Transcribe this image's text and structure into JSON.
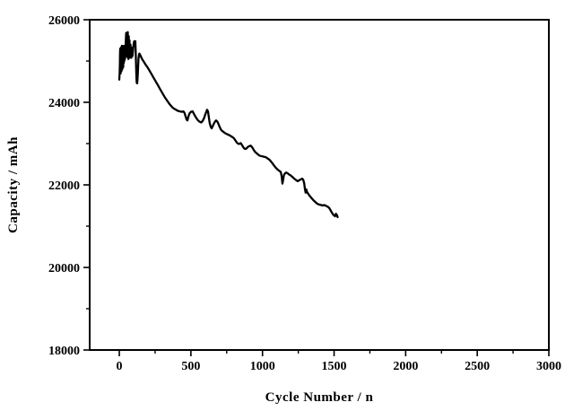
{
  "figure": {
    "background": "#ffffff",
    "frame_color": "#000000",
    "line_color": "#000000"
  },
  "chart_data": {
    "type": "line",
    "title": "",
    "xlabel": "Cycle Number / n",
    "ylabel": "Capacity / mAh",
    "xlim": [
      -207,
      3000
    ],
    "ylim": [
      18000,
      26000
    ],
    "x_ticks": [
      0,
      500,
      1000,
      1500,
      2000,
      2500,
      3000
    ],
    "x_minor_ticks": [
      250,
      750,
      1250,
      1750,
      2250,
      2750
    ],
    "y_ticks": [
      18000,
      20000,
      22000,
      24000,
      26000
    ],
    "y_minor_ticks": [
      19000,
      21000,
      23000,
      25000
    ],
    "grid": false,
    "legend": "none",
    "series": [
      {
        "name": "capacity",
        "color": "#000000",
        "points": [
          [
            0,
            24550
          ],
          [
            2,
            24700
          ],
          [
            4,
            24950
          ],
          [
            5,
            25150
          ],
          [
            6,
            25300
          ],
          [
            7,
            25100
          ],
          [
            8,
            24850
          ],
          [
            9,
            24700
          ],
          [
            10,
            24900
          ],
          [
            11,
            25150
          ],
          [
            12,
            25330
          ],
          [
            13,
            25150
          ],
          [
            14,
            24900
          ],
          [
            15,
            24750
          ],
          [
            16,
            24950
          ],
          [
            17,
            25200
          ],
          [
            18,
            25370
          ],
          [
            19,
            25200
          ],
          [
            20,
            24950
          ],
          [
            21,
            24800
          ],
          [
            22,
            25000
          ],
          [
            23,
            25250
          ],
          [
            24,
            25370
          ],
          [
            25,
            25200
          ],
          [
            26,
            24980
          ],
          [
            27,
            24850
          ],
          [
            28,
            25100
          ],
          [
            29,
            25300
          ],
          [
            30,
            25150
          ],
          [
            31,
            24950
          ],
          [
            32,
            25150
          ],
          [
            33,
            25350
          ],
          [
            34,
            25200
          ],
          [
            35,
            25000
          ],
          [
            36,
            25200
          ],
          [
            37,
            25370
          ],
          [
            38,
            25220
          ],
          [
            40,
            25050
          ],
          [
            42,
            25250
          ],
          [
            44,
            25400
          ],
          [
            46,
            25550
          ],
          [
            48,
            25680
          ],
          [
            50,
            25550
          ],
          [
            52,
            25400
          ],
          [
            54,
            25250
          ],
          [
            55,
            25100
          ],
          [
            56,
            25300
          ],
          [
            57,
            25500
          ],
          [
            58,
            25650
          ],
          [
            59,
            25700
          ],
          [
            60,
            25550
          ],
          [
            61,
            25380
          ],
          [
            62,
            25200
          ],
          [
            63,
            25050
          ],
          [
            64,
            25250
          ],
          [
            65,
            25450
          ],
          [
            66,
            25600
          ],
          [
            67,
            25450
          ],
          [
            68,
            25300
          ],
          [
            69,
            25150
          ],
          [
            70,
            25350
          ],
          [
            71,
            25500
          ],
          [
            72,
            25350
          ],
          [
            73,
            25200
          ],
          [
            74,
            25080
          ],
          [
            76,
            25250
          ],
          [
            78,
            25400
          ],
          [
            80,
            25300
          ],
          [
            82,
            25180
          ],
          [
            84,
            25080
          ],
          [
            86,
            25200
          ],
          [
            88,
            25320
          ],
          [
            90,
            25230
          ],
          [
            92,
            25120
          ],
          [
            94,
            25200
          ],
          [
            96,
            25280
          ],
          [
            98,
            25340
          ],
          [
            100,
            25400
          ],
          [
            102,
            25450
          ],
          [
            104,
            25480
          ],
          [
            106,
            25440
          ],
          [
            108,
            25390
          ],
          [
            110,
            25440
          ],
          [
            112,
            25480
          ],
          [
            114,
            25300
          ],
          [
            116,
            25000
          ],
          [
            118,
            24750
          ],
          [
            120,
            24560
          ],
          [
            122,
            24470
          ],
          [
            125,
            24460
          ],
          [
            128,
            24620
          ],
          [
            131,
            24850
          ],
          [
            134,
            25050
          ],
          [
            137,
            25140
          ],
          [
            140,
            25180
          ],
          [
            144,
            25160
          ],
          [
            148,
            25130
          ],
          [
            152,
            25100
          ],
          [
            156,
            25070
          ],
          [
            160,
            25040
          ],
          [
            170,
            24990
          ],
          [
            180,
            24930
          ],
          [
            190,
            24880
          ],
          [
            200,
            24830
          ],
          [
            210,
            24770
          ],
          [
            220,
            24710
          ],
          [
            230,
            24650
          ],
          [
            240,
            24590
          ],
          [
            250,
            24530
          ],
          [
            260,
            24470
          ],
          [
            270,
            24410
          ],
          [
            280,
            24350
          ],
          [
            290,
            24290
          ],
          [
            300,
            24230
          ],
          [
            310,
            24170
          ],
          [
            320,
            24110
          ],
          [
            330,
            24060
          ],
          [
            340,
            24010
          ],
          [
            350,
            23960
          ],
          [
            360,
            23920
          ],
          [
            370,
            23880
          ],
          [
            380,
            23850
          ],
          [
            390,
            23830
          ],
          [
            400,
            23810
          ],
          [
            412,
            23790
          ],
          [
            424,
            23780
          ],
          [
            436,
            23770
          ],
          [
            448,
            23780
          ],
          [
            456,
            23740
          ],
          [
            464,
            23650
          ],
          [
            470,
            23580
          ],
          [
            476,
            23560
          ],
          [
            482,
            23650
          ],
          [
            490,
            23730
          ],
          [
            500,
            23770
          ],
          [
            512,
            23780
          ],
          [
            524,
            23700
          ],
          [
            536,
            23630
          ],
          [
            548,
            23570
          ],
          [
            560,
            23530
          ],
          [
            572,
            23510
          ],
          [
            582,
            23550
          ],
          [
            592,
            23620
          ],
          [
            600,
            23700
          ],
          [
            607,
            23770
          ],
          [
            613,
            23820
          ],
          [
            619,
            23780
          ],
          [
            625,
            23650
          ],
          [
            631,
            23500
          ],
          [
            638,
            23410
          ],
          [
            645,
            23370
          ],
          [
            652,
            23420
          ],
          [
            660,
            23480
          ],
          [
            668,
            23530
          ],
          [
            676,
            23560
          ],
          [
            684,
            23540
          ],
          [
            692,
            23480
          ],
          [
            700,
            23410
          ],
          [
            708,
            23350
          ],
          [
            716,
            23310
          ],
          [
            728,
            23280
          ],
          [
            740,
            23250
          ],
          [
            752,
            23230
          ],
          [
            764,
            23210
          ],
          [
            776,
            23190
          ],
          [
            788,
            23160
          ],
          [
            800,
            23130
          ],
          [
            812,
            23070
          ],
          [
            824,
            23010
          ],
          [
            836,
            22990
          ],
          [
            848,
            23010
          ],
          [
            858,
            22960
          ],
          [
            868,
            22900
          ],
          [
            878,
            22870
          ],
          [
            888,
            22880
          ],
          [
            898,
            22920
          ],
          [
            908,
            22940
          ],
          [
            918,
            22950
          ],
          [
            928,
            22910
          ],
          [
            938,
            22850
          ],
          [
            948,
            22800
          ],
          [
            958,
            22770
          ],
          [
            968,
            22740
          ],
          [
            978,
            22710
          ],
          [
            988,
            22700
          ],
          [
            1000,
            22690
          ],
          [
            1012,
            22680
          ],
          [
            1024,
            22670
          ],
          [
            1036,
            22640
          ],
          [
            1048,
            22610
          ],
          [
            1058,
            22570
          ],
          [
            1070,
            22520
          ],
          [
            1082,
            22460
          ],
          [
            1094,
            22410
          ],
          [
            1106,
            22370
          ],
          [
            1118,
            22340
          ],
          [
            1128,
            22310
          ],
          [
            1134,
            22200
          ],
          [
            1139,
            22030
          ],
          [
            1144,
            22120
          ],
          [
            1150,
            22240
          ],
          [
            1158,
            22280
          ],
          [
            1166,
            22300
          ],
          [
            1176,
            22280
          ],
          [
            1186,
            22250
          ],
          [
            1196,
            22230
          ],
          [
            1206,
            22200
          ],
          [
            1216,
            22170
          ],
          [
            1226,
            22140
          ],
          [
            1236,
            22110
          ],
          [
            1246,
            22090
          ],
          [
            1256,
            22110
          ],
          [
            1266,
            22130
          ],
          [
            1276,
            22150
          ],
          [
            1284,
            22130
          ],
          [
            1291,
            22040
          ],
          [
            1296,
            21900
          ],
          [
            1301,
            21810
          ],
          [
            1306,
            21890
          ],
          [
            1311,
            21830
          ],
          [
            1320,
            21780
          ],
          [
            1330,
            21730
          ],
          [
            1340,
            21690
          ],
          [
            1350,
            21650
          ],
          [
            1360,
            21610
          ],
          [
            1370,
            21580
          ],
          [
            1380,
            21550
          ],
          [
            1390,
            21530
          ],
          [
            1400,
            21520
          ],
          [
            1410,
            21510
          ],
          [
            1420,
            21500
          ],
          [
            1430,
            21510
          ],
          [
            1440,
            21500
          ],
          [
            1450,
            21480
          ],
          [
            1460,
            21460
          ],
          [
            1468,
            21430
          ],
          [
            1476,
            21380
          ],
          [
            1484,
            21330
          ],
          [
            1492,
            21290
          ],
          [
            1500,
            21260
          ],
          [
            1507,
            21240
          ],
          [
            1513,
            21300
          ],
          [
            1519,
            21270
          ],
          [
            1525,
            21220
          ]
        ]
      }
    ]
  }
}
